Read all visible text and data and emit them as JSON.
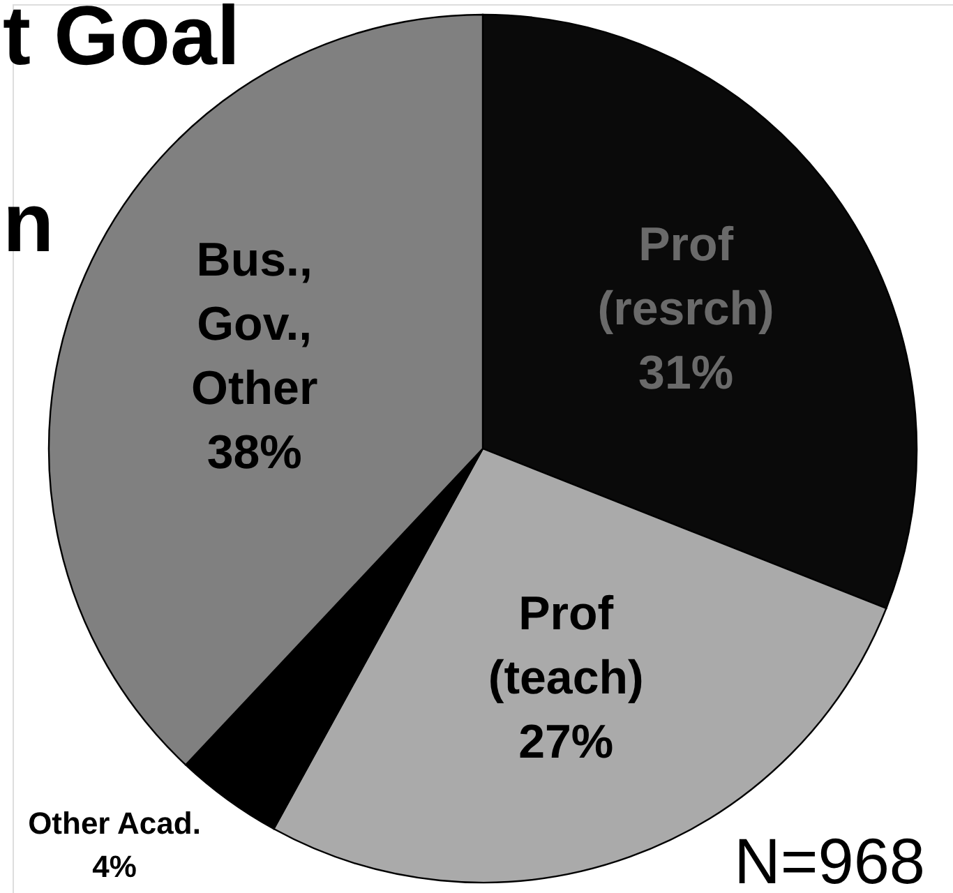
{
  "chart_data": {
    "type": "pie",
    "title": "t Goal\nn",
    "categories": [
      "Prof (resrch)",
      "Prof (teach)",
      "Other Acad.",
      "Bus., Gov., Other"
    ],
    "values": [
      31,
      27,
      4,
      38
    ],
    "colors": [
      "#0a0a0a",
      "#aaaaaa",
      "#000000",
      "#808080"
    ],
    "value_labels": [
      "31%",
      "27%",
      "4%",
      "38%"
    ],
    "annotations": [
      "N=968"
    ]
  }
}
